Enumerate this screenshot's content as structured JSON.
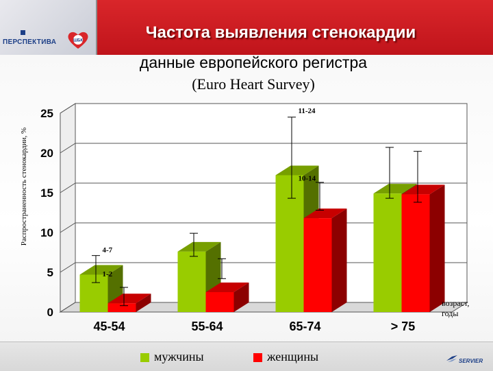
{
  "header": {
    "title": "Частота выявления стенокардии",
    "logo_text": "ПЕРСПЕКТИВА",
    "logo_badge": "ШБК"
  },
  "subtitle": {
    "line1": "данные европейского регистра",
    "line2": "(Euro Heart Survey)"
  },
  "chart_data": {
    "type": "bar",
    "ylabel": "Распространенность стенокардии, %",
    "xlabel": "возраст, годы",
    "categories": [
      "45-54",
      "55-64",
      "65-74",
      "> 75"
    ],
    "ylim": [
      0,
      25
    ],
    "yticks": [
      0,
      5,
      10,
      15,
      20,
      25
    ],
    "grid": true,
    "legend_position": "bottom",
    "series": [
      {
        "name": "мужчины",
        "color": "#99cc00",
        "values": [
          4.7,
          7.6,
          17.2,
          14.9
        ],
        "err_low": [
          3.7,
          7.0,
          14.3,
          14.3
        ],
        "err_high": [
          7.1,
          9.9,
          24.5,
          20.7
        ]
      },
      {
        "name": "женщины",
        "color": "#ff0000",
        "values": [
          1.1,
          2.5,
          11.8,
          14.8
        ],
        "err_low": [
          0.8,
          4.2,
          12.8,
          13.8
        ],
        "err_high": [
          3.1,
          6.7,
          16.3,
          20.2
        ]
      }
    ],
    "annotations": [
      {
        "text": "4-7",
        "x": "45-54",
        "y": 7.5
      },
      {
        "text": "1-2",
        "x": "45-54",
        "y": 4.5
      },
      {
        "text": "11-24",
        "x": "65-74",
        "y": 25.0
      },
      {
        "text": "10-14",
        "x": "65-74",
        "y": 16.5
      }
    ]
  },
  "footer": {
    "brand": "SERVIER"
  }
}
